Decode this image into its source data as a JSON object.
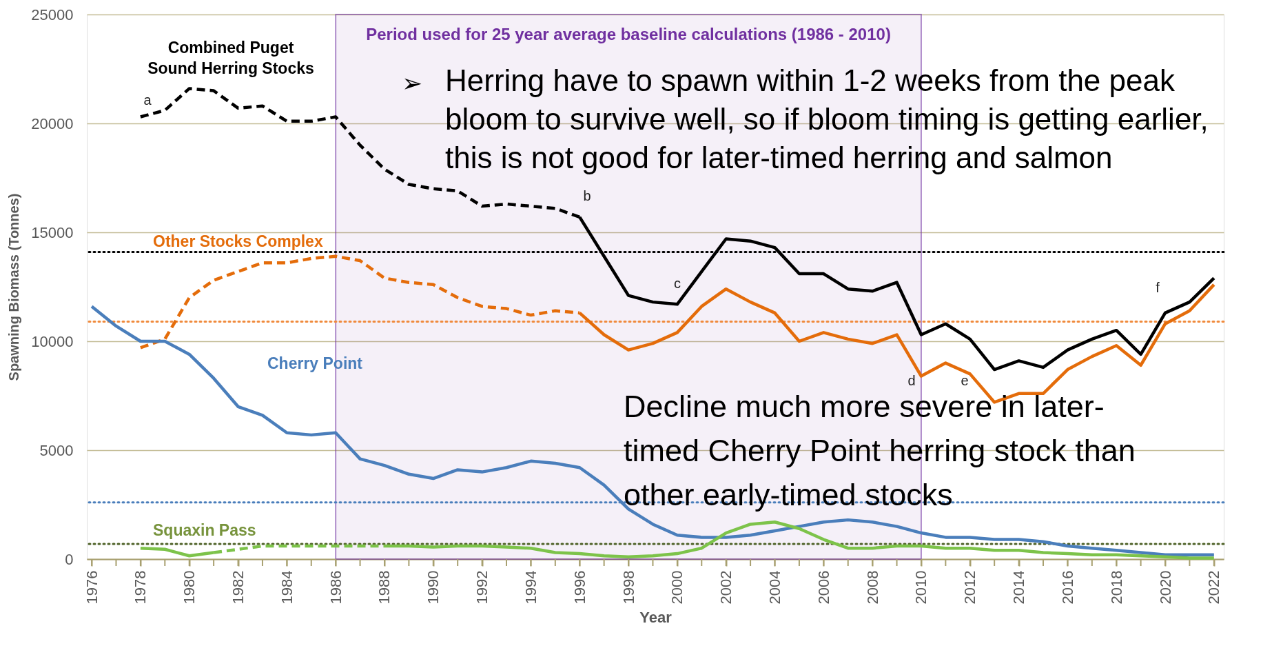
{
  "chart_data": {
    "type": "line",
    "xlabel": "Year",
    "ylabel": "Spawning Biomass (Tonnes)",
    "xlim": [
      1975.8,
      2022.4
    ],
    "xticks": [
      1976,
      {
        "value": 1977,
        "label": null
      },
      1978,
      {
        "value": 1979,
        "label": null
      },
      1980,
      {
        "value": 1981,
        "label": null
      },
      1982,
      {
        "value": 1983,
        "label": null
      },
      1984,
      {
        "value": 1985,
        "label": null
      },
      1986,
      {
        "value": 1987,
        "label": null
      },
      1988,
      {
        "value": 1989,
        "label": null
      },
      1990,
      {
        "value": 1991,
        "label": null
      },
      1992,
      {
        "value": 1993,
        "label": null
      },
      1994,
      {
        "value": 1995,
        "label": null
      },
      1996,
      {
        "value": 1997,
        "label": null
      },
      1998,
      {
        "value": 1999,
        "label": null
      },
      2000,
      {
        "value": 2001,
        "label": null
      },
      2002,
      {
        "value": 2003,
        "label": null
      },
      2004,
      {
        "value": 2005,
        "label": null
      },
      2006,
      {
        "value": 2007,
        "label": null
      },
      2008,
      {
        "value": 2009,
        "label": null
      },
      2010,
      {
        "value": 2011,
        "label": null
      },
      2012,
      {
        "value": 2013,
        "label": null
      },
      2014,
      {
        "value": 2015,
        "label": null
      },
      2016,
      {
        "value": 2017,
        "label": null
      },
      2018,
      {
        "value": 2019,
        "label": null
      },
      2020,
      {
        "value": 2021,
        "label": null
      },
      2022
    ],
    "ylim": [
      0,
      25000
    ],
    "yticks": [
      0,
      5000,
      10000,
      15000,
      20000,
      25000
    ],
    "grid": "y",
    "marker": "none",
    "series": [
      {
        "color": "#000000",
        "line_style": "dashed",
        "x": [
          1978,
          1979,
          1980,
          1981,
          1982,
          1983,
          1984,
          1985,
          1986,
          1987,
          1988,
          1989,
          1990,
          1991,
          1992,
          1993,
          1994,
          1995,
          1996
        ],
        "values": [
          20300,
          20600,
          21600,
          21500,
          20700,
          20800,
          20100,
          20100,
          20300,
          19000,
          17900,
          17200,
          17000,
          16900,
          16200,
          16300,
          16200,
          16100,
          15700
        ]
      },
      {
        "color": "#000000",
        "line_style": "solid",
        "x": [
          1996,
          1997,
          1998,
          1999,
          2000,
          2001,
          2002,
          2003,
          2004,
          2005,
          2006,
          2007,
          2008,
          2009,
          2010,
          2011,
          2012,
          2013,
          2014,
          2015,
          2016,
          2017,
          2018,
          2019,
          2020,
          2021,
          2022
        ],
        "values": [
          15700,
          13900,
          12100,
          11800,
          11700,
          13200,
          14700,
          14600,
          14300,
          13100,
          13100,
          12400,
          12300,
          12700,
          10300,
          10800,
          10100,
          8700,
          9100,
          8800,
          9600,
          10100,
          10500,
          9400,
          11300,
          11800,
          12900
        ]
      },
      {
        "color": "#e46c0a",
        "line_style": "dashed",
        "x": [
          1978,
          1979,
          1980,
          1981,
          1982,
          1983,
          1984,
          1985,
          1986,
          1987,
          1988,
          1989,
          1990,
          1991,
          1992,
          1993,
          1994,
          1995,
          1996
        ],
        "values": [
          9700,
          10100,
          12000,
          12800,
          13200,
          13600,
          13600,
          13800,
          13900,
          13700,
          12900,
          12700,
          12600,
          12000,
          11600,
          11500,
          11200,
          11400,
          11300
        ]
      },
      {
        "color": "#e46c0a",
        "line_style": "solid",
        "x": [
          1996,
          1997,
          1998,
          1999,
          2000,
          2001,
          2002,
          2003,
          2004,
          2005,
          2006,
          2007,
          2008,
          2009,
          2010,
          2011,
          2012,
          2013,
          2014,
          2015,
          2016,
          2017,
          2018,
          2019,
          2020,
          2021,
          2022
        ],
        "values": [
          11300,
          10300,
          9600,
          9900,
          10400,
          11600,
          12400,
          11800,
          11300,
          10000,
          10400,
          10100,
          9900,
          10300,
          8400,
          9000,
          8500,
          7200,
          7600,
          7600,
          8700,
          9300,
          9800,
          8900,
          10800,
          11400,
          12600
        ]
      },
      {
        "color": "#4a7ebb",
        "line_style": "solid",
        "x": [
          1976,
          1977,
          1978,
          1979,
          1980,
          1981,
          1982,
          1983,
          1984,
          1985,
          1986,
          1987,
          1988,
          1989,
          1990,
          1991,
          1992,
          1993,
          1994,
          1995,
          1996,
          1997,
          1998,
          1999,
          2000,
          2001,
          2002,
          2003,
          2004,
          2005,
          2006,
          2007,
          2008,
          2009,
          2010,
          2011,
          2012,
          2013,
          2014,
          2015,
          2016,
          2017,
          2018,
          2019,
          2020,
          2021,
          2022
        ],
        "values": [
          11600,
          10700,
          10000,
          10000,
          9400,
          8300,
          7000,
          6600,
          5800,
          5700,
          5800,
          4600,
          4300,
          3900,
          3700,
          4100,
          4000,
          4200,
          4500,
          4400,
          4200,
          3400,
          2300,
          1600,
          1100,
          1000,
          1000,
          1100,
          1300,
          1500,
          1700,
          1800,
          1700,
          1500,
          1200,
          1000,
          1000,
          900,
          900,
          800,
          600,
          500,
          400,
          300,
          200,
          200,
          200
        ]
      },
      {
        "color": "#7dc34a",
        "line_style": "solid",
        "x": [
          1978,
          1979,
          1980,
          1981
        ],
        "values": [
          500,
          450,
          150,
          300
        ]
      },
      {
        "color": "#7dc34a",
        "line_style": "dashed",
        "x": [
          1981,
          1982,
          1983,
          1984,
          1985,
          1986,
          1987,
          1988
        ],
        "values": [
          300,
          450,
          600,
          600,
          600,
          600,
          600,
          600
        ]
      },
      {
        "color": "#7dc34a",
        "line_style": "solid",
        "x": [
          1988,
          1989,
          1990,
          1991,
          1992,
          1993,
          1994,
          1995,
          1996,
          1997,
          1998,
          1999,
          2000,
          2001,
          2002,
          2003,
          2004,
          2005,
          2006,
          2007,
          2008,
          2009,
          2010,
          2011,
          2012,
          2013,
          2014,
          2015,
          2016,
          2017,
          2018,
          2019,
          2020,
          2021,
          2022
        ],
        "values": [
          600,
          600,
          550,
          600,
          600,
          550,
          500,
          300,
          250,
          150,
          100,
          150,
          250,
          500,
          1200,
          1600,
          1700,
          1400,
          900,
          500,
          500,
          600,
          600,
          500,
          500,
          400,
          400,
          300,
          250,
          200,
          200,
          150,
          100,
          50,
          50
        ]
      }
    ],
    "ref_lines": [
      {
        "axis": "y",
        "value": 14100,
        "color": "#000000",
        "line_style": "dotted"
      },
      {
        "axis": "y",
        "value": 10900,
        "color": "#f08a3c",
        "line_style": "dotted"
      },
      {
        "axis": "y",
        "value": 2600,
        "color": "#4a7ebb",
        "line_style": "dotted"
      },
      {
        "axis": "y",
        "value": 700,
        "color": "#4f6228",
        "line_style": "dotted"
      }
    ],
    "bands": [
      {
        "axis": "x",
        "from": 1986,
        "to": 2010,
        "label": "Period used for 25 year average baseline calculations (1986 - 2010)",
        "color": "#7030a0"
      }
    ],
    "annotations": [
      "Combined Puget\nSound Herring Stocks",
      "Other Stocks Complex",
      "Cherry Point",
      "Squaxin Pass",
      "a",
      "b",
      "c",
      "d",
      "e",
      "f",
      "➢",
      "Herring have to spawn within 1-2 weeks from the peak\nbloom to survive well, so if bloom timing is getting earlier,\nthis is not good for later-timed herring and salmon",
      "Decline much more severe in later-\ntimed Cherry Point herring stock than\nother early-timed stocks"
    ]
  }
}
